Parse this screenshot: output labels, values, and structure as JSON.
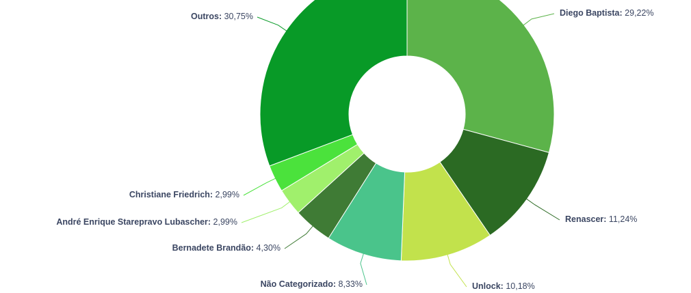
{
  "chart_data": {
    "type": "donut",
    "categories": [
      "Diego Baptista",
      "Renascer",
      "Unlock",
      "Não Categorizado",
      "Bernadete Brandão",
      "André Enrique Starepravo Lubascher",
      "Christiane Friedrich",
      "Outros"
    ],
    "values": [
      29.22,
      11.24,
      10.18,
      8.33,
      4.3,
      2.99,
      2.99,
      30.75
    ],
    "value_labels": [
      "29,22%",
      "11,24%",
      "10,18%",
      "8,33%",
      "4,30%",
      "2,99%",
      "2,99%",
      "30,75%"
    ],
    "colors": [
      "#5cb34a",
      "#2b6a23",
      "#c2e24c",
      "#4ac48b",
      "#3f7b35",
      "#a0f06c",
      "#4be23c",
      "#089a27"
    ]
  }
}
